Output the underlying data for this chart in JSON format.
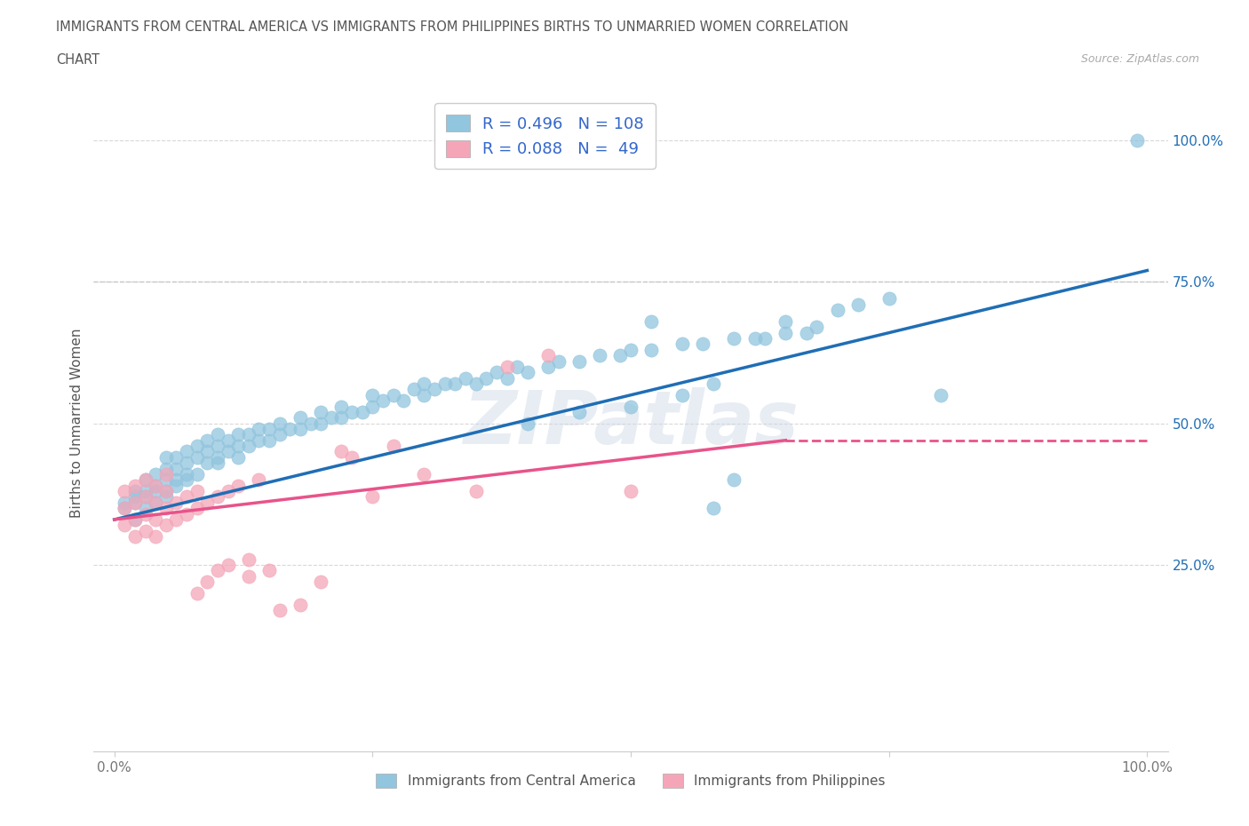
{
  "title_line1": "IMMIGRANTS FROM CENTRAL AMERICA VS IMMIGRANTS FROM PHILIPPINES BIRTHS TO UNMARRIED WOMEN CORRELATION",
  "title_line2": "CHART",
  "source": "Source: ZipAtlas.com",
  "watermark": "ZIPatlas",
  "ylabel": "Births to Unmarried Women",
  "xlim": [
    -0.02,
    1.02
  ],
  "ylim": [
    -0.08,
    1.08
  ],
  "xtick_positions": [
    0.0,
    0.25,
    0.5,
    0.75,
    1.0
  ],
  "xticklabels": [
    "0.0%",
    "",
    "",
    "",
    "100.0%"
  ],
  "right_ytick_positions": [
    0.25,
    0.5,
    0.75,
    1.0
  ],
  "right_yticklabels": [
    "25.0%",
    "50.0%",
    "75.0%",
    "100.0%"
  ],
  "hline_y": 0.75,
  "legend1_R": "0.496",
  "legend1_N": "108",
  "legend2_R": "0.088",
  "legend2_N": " 49",
  "blue_color": "#92c5de",
  "pink_color": "#f4a6b8",
  "blue_line_color": "#1f6eb5",
  "pink_line_color": "#e8538a",
  "grid_color": "#c8c8c8",
  "title_color": "#555555",
  "legend_text_color": "#3366cc",
  "blue_trend": [
    0.0,
    1.0,
    0.33,
    0.77
  ],
  "pink_trend": [
    0.0,
    0.65,
    0.33,
    0.47
  ],
  "pink_trend_dash": [
    0.65,
    1.0,
    0.47,
    0.47
  ],
  "figsize": [
    14.06,
    9.3
  ],
  "dpi": 100,
  "blue_scatter_x": [
    0.01,
    0.01,
    0.02,
    0.02,
    0.02,
    0.02,
    0.03,
    0.03,
    0.03,
    0.03,
    0.04,
    0.04,
    0.04,
    0.04,
    0.05,
    0.05,
    0.05,
    0.05,
    0.05,
    0.06,
    0.06,
    0.06,
    0.06,
    0.07,
    0.07,
    0.07,
    0.07,
    0.08,
    0.08,
    0.08,
    0.09,
    0.09,
    0.09,
    0.1,
    0.1,
    0.1,
    0.1,
    0.11,
    0.11,
    0.12,
    0.12,
    0.12,
    0.13,
    0.13,
    0.14,
    0.14,
    0.15,
    0.15,
    0.16,
    0.16,
    0.17,
    0.18,
    0.18,
    0.19,
    0.2,
    0.2,
    0.21,
    0.22,
    0.22,
    0.23,
    0.24,
    0.25,
    0.25,
    0.26,
    0.27,
    0.28,
    0.29,
    0.3,
    0.3,
    0.31,
    0.32,
    0.33,
    0.34,
    0.35,
    0.36,
    0.37,
    0.38,
    0.39,
    0.4,
    0.42,
    0.43,
    0.45,
    0.47,
    0.49,
    0.5,
    0.52,
    0.55,
    0.57,
    0.58,
    0.6,
    0.62,
    0.63,
    0.65,
    0.67,
    0.4,
    0.45,
    0.5,
    0.52,
    0.55,
    0.58,
    0.6,
    0.65,
    0.68,
    0.7,
    0.72,
    0.75,
    0.8,
    0.99
  ],
  "blue_scatter_y": [
    0.35,
    0.36,
    0.33,
    0.37,
    0.38,
    0.36,
    0.35,
    0.38,
    0.4,
    0.37,
    0.36,
    0.39,
    0.41,
    0.38,
    0.37,
    0.4,
    0.42,
    0.44,
    0.38,
    0.39,
    0.42,
    0.44,
    0.4,
    0.4,
    0.43,
    0.45,
    0.41,
    0.41,
    0.44,
    0.46,
    0.43,
    0.45,
    0.47,
    0.43,
    0.46,
    0.48,
    0.44,
    0.45,
    0.47,
    0.44,
    0.46,
    0.48,
    0.46,
    0.48,
    0.47,
    0.49,
    0.47,
    0.49,
    0.48,
    0.5,
    0.49,
    0.49,
    0.51,
    0.5,
    0.5,
    0.52,
    0.51,
    0.51,
    0.53,
    0.52,
    0.52,
    0.53,
    0.55,
    0.54,
    0.55,
    0.54,
    0.56,
    0.55,
    0.57,
    0.56,
    0.57,
    0.57,
    0.58,
    0.57,
    0.58,
    0.59,
    0.58,
    0.6,
    0.59,
    0.6,
    0.61,
    0.61,
    0.62,
    0.62,
    0.63,
    0.63,
    0.64,
    0.64,
    0.35,
    0.4,
    0.65,
    0.65,
    0.66,
    0.66,
    0.5,
    0.52,
    0.53,
    0.68,
    0.55,
    0.57,
    0.65,
    0.68,
    0.67,
    0.7,
    0.71,
    0.72,
    0.55,
    1.0
  ],
  "pink_scatter_x": [
    0.01,
    0.01,
    0.01,
    0.02,
    0.02,
    0.02,
    0.02,
    0.03,
    0.03,
    0.03,
    0.03,
    0.04,
    0.04,
    0.04,
    0.04,
    0.05,
    0.05,
    0.05,
    0.05,
    0.06,
    0.06,
    0.07,
    0.07,
    0.08,
    0.08,
    0.08,
    0.09,
    0.09,
    0.1,
    0.1,
    0.11,
    0.11,
    0.12,
    0.13,
    0.13,
    0.14,
    0.15,
    0.16,
    0.18,
    0.2,
    0.22,
    0.23,
    0.25,
    0.27,
    0.3,
    0.35,
    0.38,
    0.42,
    0.5
  ],
  "pink_scatter_y": [
    0.32,
    0.35,
    0.38,
    0.3,
    0.33,
    0.36,
    0.39,
    0.31,
    0.34,
    0.37,
    0.4,
    0.3,
    0.33,
    0.36,
    0.39,
    0.32,
    0.35,
    0.38,
    0.41,
    0.33,
    0.36,
    0.34,
    0.37,
    0.35,
    0.38,
    0.2,
    0.36,
    0.22,
    0.37,
    0.24,
    0.38,
    0.25,
    0.39,
    0.23,
    0.26,
    0.4,
    0.24,
    0.17,
    0.18,
    0.22,
    0.45,
    0.44,
    0.37,
    0.46,
    0.41,
    0.38,
    0.6,
    0.62,
    0.38
  ]
}
